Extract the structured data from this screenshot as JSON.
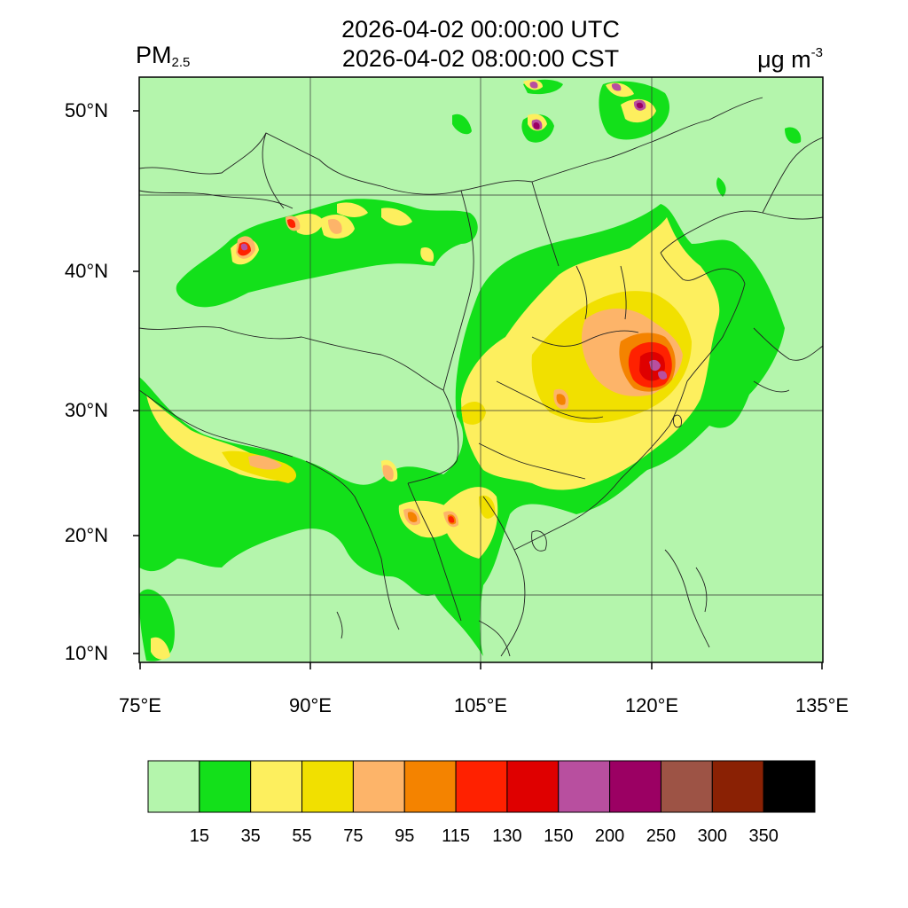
{
  "header": {
    "time_utc": "2026-04-02 00:00:00 UTC",
    "time_cst": "2026-04-02 08:00:00 CST",
    "variable": "PM",
    "variable_subscript": "2.5",
    "unit": "μg m",
    "unit_superscript": "-3"
  },
  "map": {
    "lon_range": [
      75,
      135
    ],
    "lat_range": [
      9,
      52
    ],
    "lat_ticks": [
      {
        "value": 50,
        "label": "50°N"
      },
      {
        "value": 40,
        "label": "40°N"
      },
      {
        "value": 30,
        "label": "30°N"
      },
      {
        "value": 20,
        "label": "20°N"
      },
      {
        "value": 10,
        "label": "10°N"
      }
    ],
    "lon_ticks": [
      {
        "value": 75,
        "label": "75°E"
      },
      {
        "value": 90,
        "label": "90°E"
      },
      {
        "value": 105,
        "label": "105°E"
      },
      {
        "value": 120,
        "label": "120°E"
      },
      {
        "value": 135,
        "label": "135°E"
      }
    ],
    "background_level_color": "#b4f5ac"
  },
  "colorbar": {
    "colors": [
      "#b4f5ac",
      "#13e01a",
      "#fdef5e",
      "#f1e000",
      "#fdb469",
      "#f48300",
      "#ff2100",
      "#df0000",
      "#b84f9f",
      "#9b0063",
      "#9d5345",
      "#8a2104",
      "#000000"
    ],
    "labels": [
      "15",
      "35",
      "55",
      "75",
      "95",
      "115",
      "130",
      "150",
      "200",
      "250",
      "300",
      "350"
    ]
  }
}
